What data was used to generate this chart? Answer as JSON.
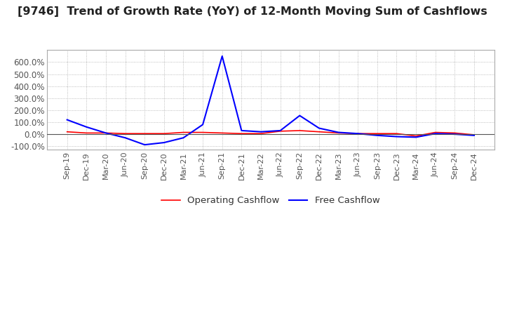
{
  "title": "[9746]  Trend of Growth Rate (YoY) of 12-Month Moving Sum of Cashflows",
  "title_fontsize": 11.5,
  "title_color": "#222222",
  "background_color": "#ffffff",
  "grid_color": "#aaaaaa",
  "ylim": [
    -130,
    700
  ],
  "yticks": [
    -100,
    0,
    100,
    200,
    300,
    400,
    500,
    600
  ],
  "legend_labels": [
    "Operating Cashflow",
    "Free Cashflow"
  ],
  "legend_colors": [
    "#ff0000",
    "#0000ff"
  ],
  "x_labels": [
    "Sep-19",
    "Dec-19",
    "Mar-20",
    "Jun-20",
    "Sep-20",
    "Dec-20",
    "Mar-21",
    "Jun-21",
    "Sep-21",
    "Dec-21",
    "Mar-22",
    "Jun-22",
    "Sep-22",
    "Dec-22",
    "Mar-23",
    "Jun-23",
    "Sep-23",
    "Dec-23",
    "Mar-24",
    "Jun-24",
    "Sep-24",
    "Dec-24"
  ],
  "operating_cashflow": [
    20,
    10,
    10,
    5,
    5,
    5,
    15,
    15,
    10,
    5,
    5,
    25,
    30,
    20,
    10,
    5,
    5,
    5,
    -15,
    15,
    10,
    -5
  ],
  "free_cashflow": [
    120,
    60,
    10,
    -30,
    -88,
    -70,
    -30,
    80,
    650,
    30,
    20,
    30,
    155,
    50,
    15,
    5,
    -10,
    -20,
    -25,
    5,
    0,
    -10
  ]
}
